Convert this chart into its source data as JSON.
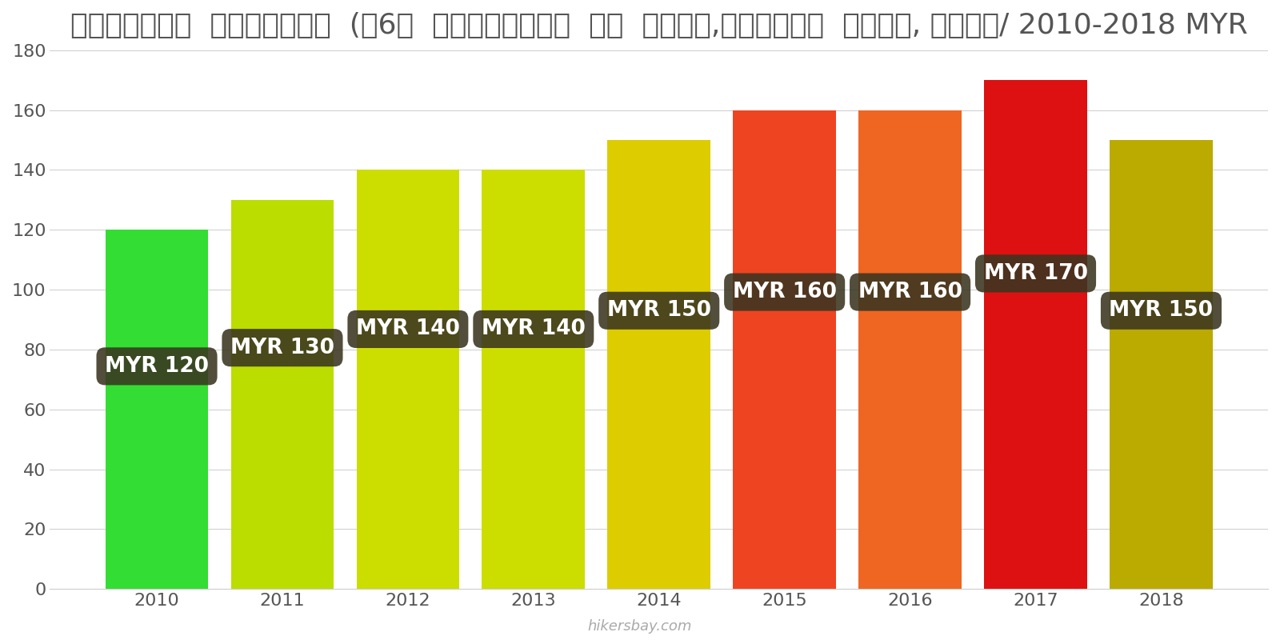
{
  "years": [
    2010,
    2011,
    2012,
    2013,
    2014,
    2015,
    2016,
    2017,
    2018
  ],
  "values": [
    120,
    130,
    140,
    140,
    150,
    160,
    160,
    170,
    150
  ],
  "bar_colors": [
    "#33DD33",
    "#BBDD00",
    "#CCDD00",
    "#CCDD00",
    "#DDCC00",
    "#EE4422",
    "#EE6622",
    "#DD1111",
    "#BBAA00"
  ],
  "label_texts": [
    "MYR 120",
    "MYR 130",
    "MYR 140",
    "MYR 140",
    "MYR 150",
    "MYR 160",
    "MYR 160",
    "MYR 170",
    "MYR 150"
  ],
  "title": "मलेशिया  इंटरनेट  (๠6०  एमबीपीएस  या  अधिक,असीमित  डेटा, केबल/ 2010-2018 MYR",
  "ylim": [
    0,
    180
  ],
  "yticks": [
    0,
    20,
    40,
    60,
    80,
    100,
    120,
    140,
    160,
    180
  ],
  "background_color": "#ffffff",
  "watermark": "hikersbay.com",
  "label_bg_color": "#3a3520",
  "label_text_color": "#ffffff",
  "label_fontsize": 19,
  "title_fontsize": 26,
  "bar_width": 0.82
}
